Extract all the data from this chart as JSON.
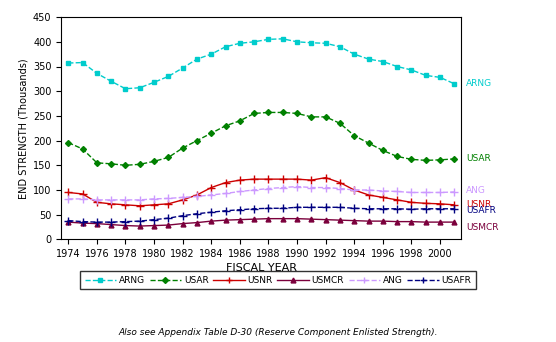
{
  "years": [
    1974,
    1975,
    1976,
    1977,
    1978,
    1979,
    1980,
    1981,
    1982,
    1983,
    1984,
    1985,
    1986,
    1987,
    1988,
    1989,
    1990,
    1991,
    1992,
    1993,
    1994,
    1995,
    1996,
    1997,
    1998,
    1999,
    2000,
    2001
  ],
  "ARNG": [
    357,
    358,
    336,
    320,
    305,
    307,
    318,
    330,
    347,
    365,
    375,
    390,
    397,
    400,
    405,
    406,
    400,
    398,
    397,
    390,
    375,
    365,
    360,
    350,
    343,
    332,
    328,
    315
  ],
  "USAR": [
    196,
    183,
    155,
    153,
    150,
    152,
    158,
    166,
    185,
    200,
    215,
    230,
    240,
    255,
    257,
    257,
    255,
    248,
    248,
    235,
    210,
    195,
    180,
    168,
    162,
    160,
    161,
    163
  ],
  "USNR": [
    95,
    92,
    75,
    72,
    70,
    68,
    70,
    72,
    80,
    90,
    105,
    115,
    120,
    122,
    122,
    122,
    122,
    120,
    125,
    115,
    100,
    90,
    85,
    80,
    75,
    73,
    72,
    70
  ],
  "USMCR": [
    35,
    33,
    32,
    30,
    28,
    27,
    28,
    29,
    32,
    34,
    37,
    39,
    40,
    41,
    42,
    42,
    42,
    41,
    40,
    39,
    38,
    37,
    37,
    36,
    36,
    35,
    35,
    35
  ],
  "ANG": [
    82,
    82,
    80,
    80,
    80,
    80,
    82,
    83,
    85,
    87,
    90,
    93,
    97,
    100,
    103,
    105,
    107,
    105,
    105,
    103,
    100,
    100,
    98,
    97,
    95,
    95,
    95,
    96
  ],
  "USAFR": [
    38,
    36,
    35,
    35,
    36,
    37,
    40,
    43,
    48,
    52,
    55,
    58,
    60,
    62,
    63,
    63,
    65,
    65,
    65,
    65,
    63,
    62,
    62,
    62,
    61,
    62,
    62,
    62
  ],
  "ARNG_color": "#00CCCC",
  "USAR_color": "#008000",
  "USNR_color": "#CC0000",
  "USMCR_color": "#7B003C",
  "ANG_color": "#CC99FF",
  "USAFR_color": "#000080",
  "ylabel": "END STRENGTH (Thousands)",
  "xlabel": "FISCAL YEAR",
  "ylim": [
    0,
    450
  ],
  "yticks": [
    0,
    50,
    100,
    150,
    200,
    250,
    300,
    350,
    400,
    450
  ],
  "xticks": [
    1974,
    1976,
    1978,
    1980,
    1982,
    1984,
    1986,
    1988,
    1990,
    1992,
    1994,
    1996,
    1998,
    2000
  ],
  "footnote": "Also see Appendix Table D-30 (Reserve Component Enlisted Strength).",
  "bg_color": "#FFFFFF",
  "right_labels": {
    "ARNG": 315,
    "USAR": 163,
    "ANG": 96,
    "USNR": 70,
    "USAFR": 62,
    "USMCR": 35
  }
}
